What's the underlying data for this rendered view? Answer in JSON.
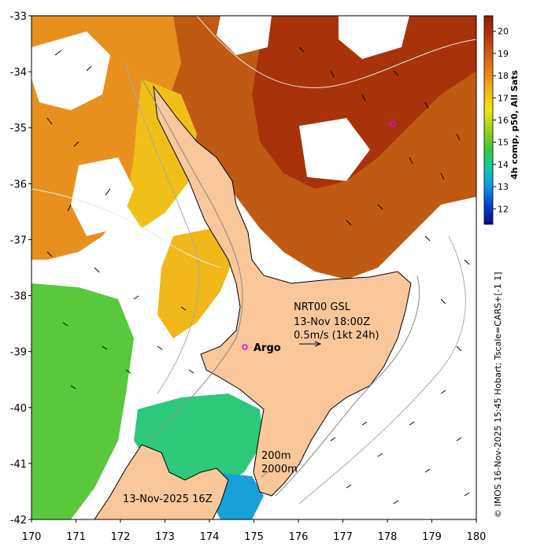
{
  "map": {
    "lon_ticks": [
      "170",
      "171",
      "172",
      "173",
      "174",
      "175",
      "176",
      "177",
      "178",
      "179",
      "180"
    ],
    "lat_ticks": [
      "-33",
      "-34",
      "-35",
      "-36",
      "-37",
      "-38",
      "-39",
      "-40",
      "-41",
      "-42"
    ],
    "lon_range": [
      170,
      180
    ],
    "lat_range": [
      -42,
      -33
    ]
  },
  "colorbar": {
    "ticks": [
      "20",
      "19",
      "18",
      "17",
      "16",
      "15",
      "14",
      "13",
      "12"
    ],
    "range": [
      11.3,
      20.7
    ],
    "title": "4h comp, p50, All Sats",
    "colors": [
      "#0a0a8c",
      "#0a3cd2",
      "#0f96e6",
      "#14c8aa",
      "#3cc83c",
      "#96d21e",
      "#f0e614",
      "#f5b414",
      "#eb8214",
      "#d25a0f",
      "#b4320a",
      "#8c1e05"
    ]
  },
  "annotations": {
    "station": "NRT00 GSL",
    "time": "13-Nov 18:00Z",
    "scale": "0.5m/s (1kt 24h)",
    "argo": "Argo",
    "depth_200": "200m",
    "depth_2000": "2000m",
    "date": "13-Nov-2025 16Z"
  },
  "credit": "© IMOS 16-Nov-2025 15:45 Hobart; Tscale=CARS+[-1 1]"
}
